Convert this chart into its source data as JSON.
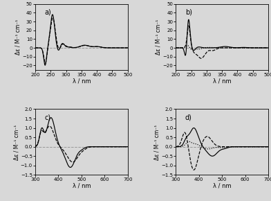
{
  "panel_a": {
    "label": "a)",
    "xlim": [
      200,
      500
    ],
    "ylim": [
      -25,
      50
    ],
    "yticks": [
      -20,
      -10,
      0,
      10,
      20,
      30,
      40,
      50
    ],
    "xticks": [
      200,
      250,
      300,
      350,
      400,
      450,
      500
    ],
    "ylabel": "Δε / M⁻¹ cm⁻¹",
    "xlabel": "λ / nm"
  },
  "panel_b": {
    "label": "b)",
    "xlim": [
      200,
      500
    ],
    "ylim": [
      -25,
      50
    ],
    "yticks": [
      -20,
      -10,
      0,
      10,
      20,
      30,
      40,
      50
    ],
    "xticks": [
      200,
      250,
      300,
      350,
      400,
      450,
      500
    ],
    "ylabel": "Δε / M⁻¹ cm⁻¹",
    "xlabel": "λ / nm"
  },
  "panel_c": {
    "label": "c)",
    "xlim": [
      300,
      700
    ],
    "ylim": [
      -1.5,
      2.0
    ],
    "yticks": [
      -1.5,
      -1.0,
      -0.5,
      0.0,
      0.5,
      1.0,
      1.5,
      2.0
    ],
    "xticks": [
      300,
      400,
      500,
      600,
      700
    ],
    "ylabel": "Δε / M⁻¹ cm⁻¹",
    "xlabel": "λ / nm"
  },
  "panel_d": {
    "label": "d)",
    "xlim": [
      300,
      700
    ],
    "ylim": [
      -1.5,
      2.0
    ],
    "yticks": [
      -1.5,
      -1.0,
      -0.5,
      0.0,
      0.5,
      1.0,
      1.5,
      2.0
    ],
    "xticks": [
      300,
      400,
      500,
      600,
      700
    ],
    "ylabel": "Δε / M⁻¹ cm⁻¹",
    "xlabel": "λ / nm"
  },
  "bg_color": "#d8d8d8",
  "line_color": "black",
  "zero_line_color": "#999999",
  "zero_line_style": "--"
}
